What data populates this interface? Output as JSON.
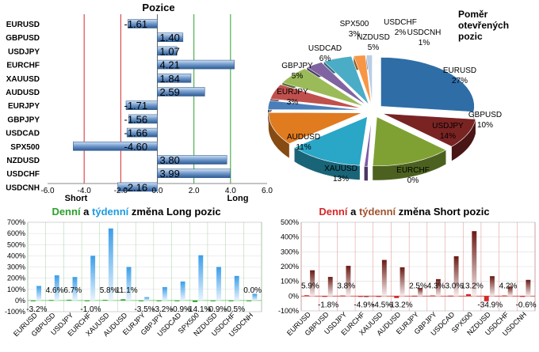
{
  "colors": {
    "long_green": "#2ca02c",
    "week_blue": "#1f9bde",
    "short_red": "#d62728",
    "week_brown": "#a0522d",
    "grid_green": "#66bb66",
    "grid_red": "#cc4444"
  },
  "chart_data": [
    {
      "type": "bar",
      "orientation": "horizontal",
      "title": "Pozice",
      "categories": [
        "EURUSD",
        "GBPUSD",
        "USDJPY",
        "EURCHF",
        "XAUUSD",
        "AUDUSD",
        "EURJPY",
        "GBPJPY",
        "USDCAD",
        "SPX500",
        "NZDUSD",
        "USDCHF",
        "USDCNH"
      ],
      "values": [
        -1.61,
        1.4,
        1.07,
        4.21,
        1.84,
        2.59,
        -1.71,
        -1.56,
        -1.66,
        -4.6,
        3.8,
        3.99,
        -2.16
      ],
      "value_labels": [
        "-1.61",
        "1.40",
        "1.07",
        "4.21",
        "1.84",
        "2.59",
        "-1.71",
        "-1.56",
        "-1.66",
        "-4.60",
        "3.80",
        "3.99",
        "-2.16"
      ],
      "xlim": [
        -6,
        6
      ],
      "xticks": [
        "-6.0",
        "-4.0",
        "-2.0",
        "0.0",
        "2.0",
        "4.0",
        "6.0"
      ],
      "xtick_values": [
        -6,
        -4,
        -2,
        0,
        2,
        4,
        6
      ],
      "short_label": "Short",
      "long_label": "Long",
      "thresholds": [
        -4,
        -2,
        2,
        4
      ]
    },
    {
      "type": "pie",
      "title": [
        "Poměr",
        "otevřených",
        "pozic"
      ],
      "slices": [
        {
          "label": "EURUSD",
          "pct": "27%",
          "value": 27,
          "color": "#2f6da6"
        },
        {
          "label": "GBPUSD",
          "pct": "10%",
          "value": 10,
          "color": "#7a2323"
        },
        {
          "label": "USDJPY",
          "pct": "14%",
          "value": 14,
          "color": "#7fa134"
        },
        {
          "label": "EURCHF",
          "pct": "0%",
          "value": 0.6,
          "color": "#7b5aa6"
        },
        {
          "label": "XAUUSD",
          "pct": "13%",
          "value": 13,
          "color": "#2aa6c7"
        },
        {
          "label": "AUDUSD",
          "pct": "11%",
          "value": 11,
          "color": "#e07b20"
        },
        {
          "label": "EURJPY",
          "pct": "3%",
          "value": 3,
          "color": "#4a7ebb"
        },
        {
          "label": "GBPJPY",
          "pct": "5%",
          "value": 5,
          "color": "#c0504d"
        },
        {
          "label": "USDCAD",
          "pct": "6%",
          "value": 6,
          "color": "#9bbb59"
        },
        {
          "label": "SPX500",
          "pct": "3%",
          "value": 3,
          "color": "#8064a2"
        },
        {
          "label": "NZDUSD",
          "pct": "5%",
          "value": 5,
          "color": "#4bacc6"
        },
        {
          "label": "USDCHF",
          "pct": "2%",
          "value": 2,
          "color": "#f79646"
        },
        {
          "label": "USDCNH",
          "pct": "1%",
          "value": 1,
          "color": "#b9cde5"
        }
      ]
    },
    {
      "type": "bar",
      "title_parts": [
        "Denní",
        " a ",
        "týdenní",
        " změna Long pozic"
      ],
      "categories": [
        "EURUSD",
        "GBPUSD",
        "USDJPY",
        "EURCHF",
        "XAUUSD",
        "AUDUSD",
        "EURJPY",
        "GBPJPY",
        "USDCAD",
        "SPX500",
        "NZDUSD",
        "USDCHF",
        "USDCNH"
      ],
      "series": [
        {
          "name": "Denní",
          "values": [
            -3.2,
            4.6,
            6.7,
            -1.0,
            5.8,
            11.1,
            -3.5,
            -3.2,
            -0.9,
            -14.1,
            -0.9,
            -0.5,
            0.0
          ]
        },
        {
          "name": "Týdenní",
          "values": [
            130,
            225,
            210,
            400,
            645,
            300,
            30,
            120,
            170,
            405,
            300,
            220,
            60
          ]
        }
      ],
      "data_labels": [
        "-3.2%",
        "4.6%",
        "6.7%",
        "-1.0%",
        "5.8%",
        "11.1%",
        "-3.5%",
        "-3.2%",
        "-0.9%",
        "-14.1%",
        "-0.9%",
        "-0.5%",
        "0.0%"
      ],
      "ylim": [
        -100,
        700
      ],
      "yticks": [
        "700%",
        "600%",
        "500%",
        "400%",
        "300%",
        "200%",
        "100%",
        "0%",
        "-100%"
      ],
      "ytick_values": [
        700,
        600,
        500,
        400,
        300,
        200,
        100,
        0,
        -100
      ]
    },
    {
      "type": "bar",
      "title_parts": [
        "Denní",
        " a ",
        "týdenní",
        " změna Short pozic"
      ],
      "categories": [
        "EURUSD",
        "GBPUSD",
        "USDJPY",
        "EURCHF",
        "XAUUSD",
        "AUDUSD",
        "EURJPY",
        "GBPJPY",
        "USDCAD",
        "SPX500",
        "NZDUSD",
        "USDCHF",
        "USDCNH"
      ],
      "series": [
        {
          "name": "Denní",
          "values": [
            5.9,
            -1.8,
            3.8,
            -4.9,
            -4.5,
            -13.2,
            2.5,
            4.3,
            3.0,
            13.2,
            -34.9,
            4.2,
            -0.6
          ]
        },
        {
          "name": "Týdenní",
          "values": [
            175,
            130,
            205,
            -10,
            245,
            195,
            55,
            115,
            270,
            440,
            135,
            65,
            110
          ]
        }
      ],
      "data_labels": [
        "5.9%",
        "-1.8%",
        "3.8%",
        "-4.9%",
        "-4.5%",
        "-13.2%",
        "2.5%",
        "4.3%",
        "3.0%",
        "13.2%",
        "-34.9%",
        "4.2%",
        "-0.6%"
      ],
      "ylim": [
        -100,
        500
      ],
      "yticks": [
        "500%",
        "400%",
        "300%",
        "200%",
        "100%",
        "0%",
        "-100%"
      ],
      "ytick_values": [
        500,
        400,
        300,
        200,
        100,
        0,
        -100
      ]
    }
  ]
}
